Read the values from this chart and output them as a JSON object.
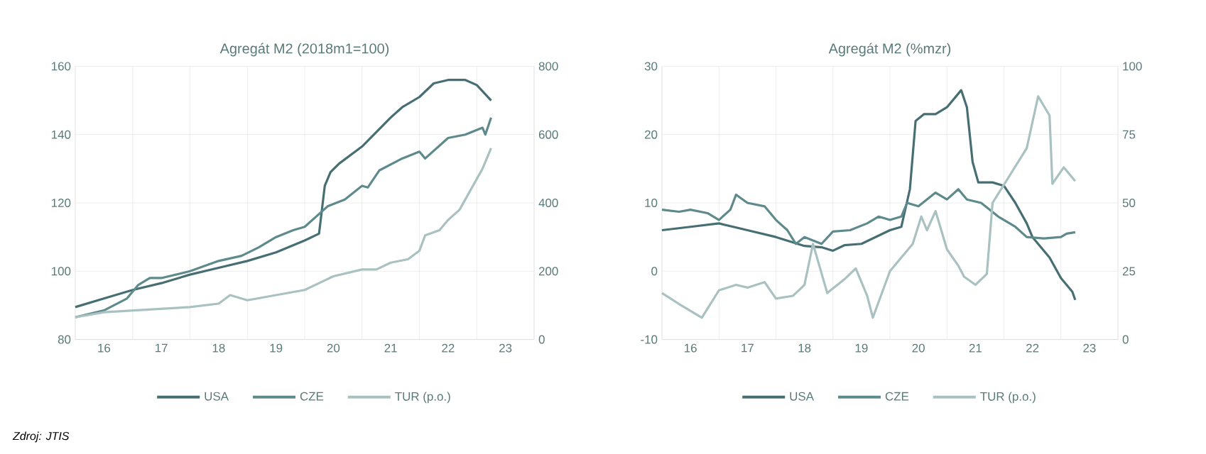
{
  "chart_data": [
    {
      "type": "line",
      "title": "Agregát M2 (2018m1=100)",
      "legend": "bottom",
      "grid": true,
      "xlim": [
        2015.5,
        2023.5
      ],
      "xticks": [
        {
          "value": 2016,
          "label": "16"
        },
        {
          "value": 2017,
          "label": "17"
        },
        {
          "value": 2018,
          "label": "18"
        },
        {
          "value": 2019,
          "label": "19"
        },
        {
          "value": 2020,
          "label": "20"
        },
        {
          "value": 2021,
          "label": "21"
        },
        {
          "value": 2022,
          "label": "22"
        },
        {
          "value": 2023,
          "label": "23"
        },
        {
          "value": 2016.5,
          "label": null
        },
        {
          "value": 2017.5,
          "label": null
        },
        {
          "value": 2018.5,
          "label": null
        },
        {
          "value": 2019.5,
          "label": null
        },
        {
          "value": 2020.5,
          "label": null
        },
        {
          "value": 2021.5,
          "label": null
        },
        {
          "value": 2022.5,
          "label": null
        }
      ],
      "ylim": [
        80,
        160
      ],
      "yticks": [
        80,
        100,
        120,
        140,
        160
      ],
      "y2lim": [
        0,
        800
      ],
      "y2ticks": [
        0,
        200,
        400,
        600,
        800
      ],
      "series": [
        {
          "name": "USA",
          "color": "#466e73",
          "x": [
            2015.5,
            2016,
            2016.5,
            2017,
            2017.5,
            2018,
            2018.5,
            2019,
            2019.5,
            2019.75,
            2019.85,
            2019.95,
            2020.1,
            2020.5,
            2021,
            2021.2,
            2021.5,
            2021.75,
            2022,
            2022.3,
            2022.5,
            2022.75
          ],
          "values": [
            89.5,
            92,
            94.5,
            96.5,
            99,
            101,
            103,
            105.5,
            109,
            111,
            125,
            129,
            131.5,
            136.5,
            145,
            148,
            151,
            155,
            156,
            156,
            154.5,
            150
          ]
        },
        {
          "name": "CZE",
          "color": "#5f8a8b",
          "x": [
            2015.5,
            2016,
            2016.4,
            2016.6,
            2016.8,
            2017,
            2017.5,
            2018,
            2018.4,
            2018.7,
            2019,
            2019.3,
            2019.5,
            2019.7,
            2019.9,
            2020.2,
            2020.5,
            2020.6,
            2020.8,
            2021.2,
            2021.5,
            2021.6,
            2021.9,
            2022,
            2022.3,
            2022.6,
            2022.65,
            2022.75
          ],
          "values": [
            86.5,
            88.5,
            92,
            96,
            98,
            98,
            100,
            103,
            104.5,
            107,
            110,
            112,
            113,
            116,
            119,
            121,
            125,
            124.5,
            129.5,
            133,
            135,
            133,
            137.5,
            139,
            140,
            142,
            140,
            145
          ]
        },
        {
          "name": "TUR (p.o.)",
          "color": "#a9c1c1",
          "axis": "y2",
          "x": [
            2015.5,
            2016,
            2016.5,
            2017,
            2017.5,
            2018,
            2018.2,
            2018.5,
            2019,
            2019.5,
            2019.75,
            2020,
            2020.5,
            2020.75,
            2021,
            2021.3,
            2021.5,
            2021.6,
            2021.85,
            2022,
            2022.2,
            2022.4,
            2022.6,
            2022.75
          ],
          "values": [
            65,
            80,
            85,
            90,
            95,
            105,
            130,
            115,
            130,
            145,
            165,
            185,
            205,
            205,
            225,
            235,
            260,
            305,
            320,
            350,
            380,
            440,
            500,
            560
          ]
        }
      ]
    },
    {
      "type": "line",
      "title": "Agregát M2 (%mzr)",
      "legend": "bottom",
      "grid": true,
      "xlim": [
        2015.5,
        2023.5
      ],
      "xticks": [
        {
          "value": 2016,
          "label": "16"
        },
        {
          "value": 2017,
          "label": "17"
        },
        {
          "value": 2018,
          "label": "18"
        },
        {
          "value": 2019,
          "label": "19"
        },
        {
          "value": 2020,
          "label": "20"
        },
        {
          "value": 2021,
          "label": "21"
        },
        {
          "value": 2022,
          "label": "22"
        },
        {
          "value": 2023,
          "label": "23"
        },
        {
          "value": 2016.5,
          "label": null
        },
        {
          "value": 2017.5,
          "label": null
        },
        {
          "value": 2018.5,
          "label": null
        },
        {
          "value": 2019.5,
          "label": null
        },
        {
          "value": 2020.5,
          "label": null
        },
        {
          "value": 2021.5,
          "label": null
        },
        {
          "value": 2022.5,
          "label": null
        }
      ],
      "ylim": [
        -10,
        30
      ],
      "yticks": [
        -10,
        0,
        10,
        20,
        30
      ],
      "y2lim": [
        0,
        100
      ],
      "y2ticks": [
        0,
        25,
        50,
        75,
        100
      ],
      "annotations": [
        "Zdroj: JTIS"
      ],
      "series": [
        {
          "name": "USA",
          "color": "#466e73",
          "x": [
            2015.5,
            2016,
            2016.5,
            2017,
            2017.5,
            2018,
            2018.3,
            2018.5,
            2018.7,
            2019,
            2019.5,
            2019.7,
            2019.85,
            2019.95,
            2020.1,
            2020.3,
            2020.5,
            2020.75,
            2020.85,
            2020.95,
            2021.05,
            2021.3,
            2021.5,
            2021.7,
            2021.9,
            2022,
            2022.3,
            2022.5,
            2022.7,
            2022.75
          ],
          "values": [
            6,
            6.5,
            7,
            6,
            5,
            3.7,
            3.5,
            3,
            3.8,
            4,
            6,
            6.5,
            12,
            22,
            23,
            23,
            24,
            26.5,
            24,
            16,
            13,
            13,
            12.5,
            10,
            7,
            5,
            2,
            -1,
            -3,
            -4.2
          ]
        },
        {
          "name": "CZE",
          "color": "#5f8a8b",
          "x": [
            2015.5,
            2015.8,
            2016,
            2016.3,
            2016.5,
            2016.7,
            2016.8,
            2017,
            2017.3,
            2017.5,
            2017.7,
            2017.85,
            2018,
            2018.3,
            2018.5,
            2018.8,
            2019.1,
            2019.3,
            2019.5,
            2019.7,
            2019.8,
            2020,
            2020.3,
            2020.5,
            2020.7,
            2020.85,
            2021.1,
            2021.4,
            2021.7,
            2021.9,
            2022.2,
            2022.5,
            2022.6,
            2022.75
          ],
          "values": [
            9,
            8.7,
            9,
            8.5,
            7.5,
            9,
            11.2,
            10,
            9.5,
            7.5,
            6,
            4,
            5,
            4,
            5.8,
            6,
            7,
            8,
            7.5,
            8,
            10,
            9.5,
            11.5,
            10.5,
            12,
            10.5,
            10,
            8,
            6.5,
            5,
            4.8,
            5,
            5.5,
            5.7
          ]
        },
        {
          "name": "TUR (p.o.)",
          "color": "#a9c1c1",
          "axis": "y2",
          "x": [
            2015.5,
            2015.8,
            2016.2,
            2016.5,
            2016.8,
            2017,
            2017.3,
            2017.5,
            2017.8,
            2018,
            2018.1,
            2018.15,
            2018.4,
            2018.7,
            2018.9,
            2019.1,
            2019.2,
            2019.5,
            2019.7,
            2019.9,
            2020.05,
            2020.15,
            2020.3,
            2020.5,
            2020.7,
            2020.8,
            2021,
            2021.2,
            2021.3,
            2021.6,
            2021.9,
            2022.1,
            2022.3,
            2022.35,
            2022.55,
            2022.75
          ],
          "values": [
            17,
            13,
            8,
            18,
            20,
            19,
            21,
            15,
            16,
            20,
            30,
            35,
            17,
            22,
            26,
            16,
            8,
            25,
            30,
            35,
            45,
            40,
            47,
            33,
            27,
            23,
            20,
            24,
            50,
            60,
            70,
            89,
            82,
            57,
            63,
            58
          ]
        }
      ]
    }
  ]
}
